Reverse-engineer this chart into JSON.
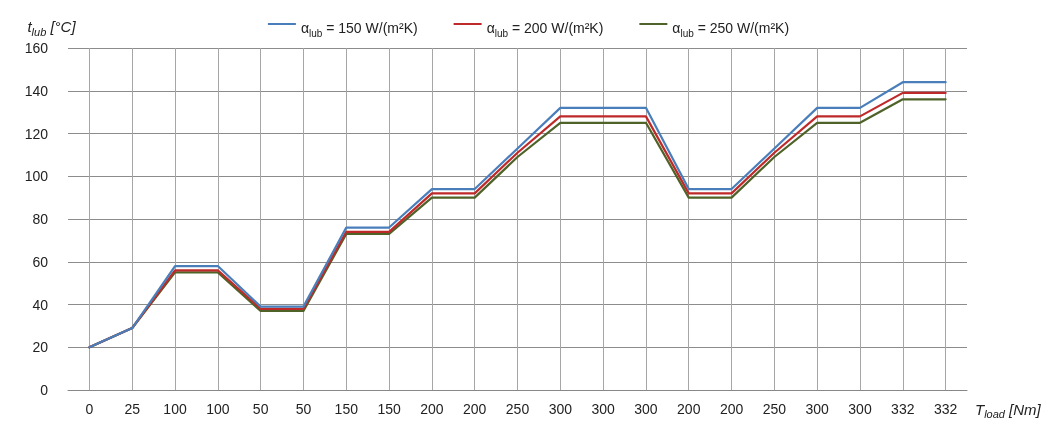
{
  "chart_data": {
    "type": "line",
    "xlabel": "T$_{load}$ [Nm]",
    "ylabel": "t$_{lub}$ [°C]",
    "categories": [
      "0",
      "25",
      "100",
      "100",
      "50",
      "50",
      "150",
      "150",
      "200",
      "200",
      "250",
      "300",
      "300",
      "300",
      "200",
      "200",
      "250",
      "300",
      "300",
      "332",
      "332"
    ],
    "series": [
      {
        "name": "α$_{lub}$ = 150 W/(m²K)",
        "color": "#4a7ebb",
        "values": [
          20,
          29,
          58,
          58,
          39,
          39,
          76,
          76,
          94,
          94,
          113,
          132,
          132,
          132,
          94,
          94,
          113,
          132,
          132,
          144,
          144
        ]
      },
      {
        "name": "α$_{lub}$ = 200 W/(m²K)",
        "color": "#be2a2a",
        "values": [
          20,
          29,
          56,
          56,
          38,
          38,
          74,
          74,
          92,
          92,
          111,
          128,
          128,
          128,
          92,
          92,
          111,
          128,
          128,
          139,
          139
        ]
      },
      {
        "name": "α$_{lub}$ = 250 W/(m²K)",
        "color": "#4f6228",
        "values": [
          20,
          29,
          55,
          55,
          37,
          37,
          73,
          73,
          90,
          90,
          109,
          125,
          125,
          125,
          90,
          90,
          109,
          125,
          125,
          136,
          136
        ]
      }
    ],
    "ylim": [
      0,
      160
    ],
    "yticks": [
      0,
      20,
      40,
      60,
      80,
      100,
      120,
      140,
      160
    ],
    "grid": true,
    "legend": "top",
    "marker": "none",
    "line_style": "solid"
  }
}
